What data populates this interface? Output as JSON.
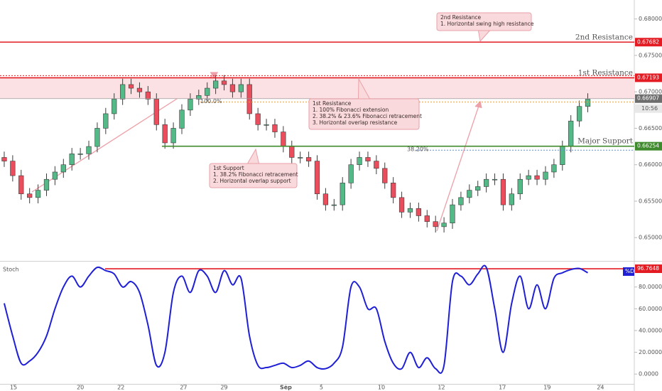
{
  "chart_data": [
    {
      "type": "candlestick",
      "xlim": [
        0,
        75
      ],
      "ylim": [
        0.647,
        0.6826
      ],
      "yticks": [
        {
          "value": 0.68,
          "label": "0.68000"
        },
        {
          "value": 0.675,
          "label": "0.67500"
        },
        {
          "value": 0.67,
          "label": "0.67000"
        },
        {
          "value": 0.665,
          "label": "0.66500"
        },
        {
          "value": 0.66,
          "label": "0.66000"
        },
        {
          "value": 0.655,
          "label": "0.65500"
        },
        {
          "value": 0.65,
          "label": "0.65000"
        }
      ],
      "up_color": "#53b987",
      "down_color": "#eb4d5c",
      "candles": [
        [
          0.661,
          0.6618,
          0.6597,
          0.6605
        ],
        [
          0.6605,
          0.6613,
          0.6577,
          0.6585
        ],
        [
          0.6585,
          0.6593,
          0.6552,
          0.656
        ],
        [
          0.656,
          0.6568,
          0.6547,
          0.6555
        ],
        [
          0.6555,
          0.6573,
          0.6547,
          0.6565
        ],
        [
          0.6565,
          0.6588,
          0.6557,
          0.658
        ],
        [
          0.658,
          0.6598,
          0.6572,
          0.659
        ],
        [
          0.659,
          0.6608,
          0.6582,
          0.66
        ],
        [
          0.66,
          0.6623,
          0.6592,
          0.6615
        ],
        [
          0.6615,
          0.6623,
          0.6607,
          0.6615
        ],
        [
          0.6615,
          0.6633,
          0.6607,
          0.6625
        ],
        [
          0.6625,
          0.6658,
          0.6617,
          0.665
        ],
        [
          0.665,
          0.6678,
          0.6642,
          0.667
        ],
        [
          0.667,
          0.6698,
          0.6662,
          0.669
        ],
        [
          0.669,
          0.6718,
          0.6682,
          0.671
        ],
        [
          0.671,
          0.6718,
          0.6697,
          0.6705
        ],
        [
          0.6705,
          0.6713,
          0.6692,
          0.67
        ],
        [
          0.67,
          0.6708,
          0.6682,
          0.669
        ],
        [
          0.669,
          0.6698,
          0.6647,
          0.6655
        ],
        [
          0.6655,
          0.6663,
          0.6622,
          0.663
        ],
        [
          0.663,
          0.6658,
          0.6622,
          0.665
        ],
        [
          0.665,
          0.6683,
          0.6642,
          0.6675
        ],
        [
          0.6675,
          0.6698,
          0.6667,
          0.669
        ],
        [
          0.669,
          0.6703,
          0.6682,
          0.6695
        ],
        [
          0.6695,
          0.6713,
          0.6687,
          0.6705
        ],
        [
          0.6705,
          0.6723,
          0.6697,
          0.6715
        ],
        [
          0.6715,
          0.6723,
          0.6702,
          0.671
        ],
        [
          0.671,
          0.6718,
          0.6692,
          0.67
        ],
        [
          0.67,
          0.6718,
          0.6692,
          0.671
        ],
        [
          0.671,
          0.6718,
          0.6662,
          0.667
        ],
        [
          0.667,
          0.6678,
          0.6647,
          0.6655
        ],
        [
          0.6655,
          0.6663,
          0.6647,
          0.6655
        ],
        [
          0.6655,
          0.6663,
          0.6637,
          0.6645
        ],
        [
          0.6645,
          0.6653,
          0.6617,
          0.6625
        ],
        [
          0.6625,
          0.6633,
          0.6602,
          0.661
        ],
        [
          0.661,
          0.6618,
          0.6602,
          0.661
        ],
        [
          0.661,
          0.6618,
          0.6597,
          0.6605
        ],
        [
          0.6605,
          0.6613,
          0.6552,
          0.656
        ],
        [
          0.656,
          0.6568,
          0.6537,
          0.6545
        ],
        [
          0.6545,
          0.6553,
          0.6537,
          0.6545
        ],
        [
          0.6545,
          0.6583,
          0.6537,
          0.6575
        ],
        [
          0.6575,
          0.6608,
          0.6567,
          0.66
        ],
        [
          0.66,
          0.6618,
          0.6592,
          0.661
        ],
        [
          0.661,
          0.6618,
          0.6597,
          0.6605
        ],
        [
          0.6605,
          0.6613,
          0.6587,
          0.6595
        ],
        [
          0.6595,
          0.6603,
          0.6567,
          0.6575
        ],
        [
          0.6575,
          0.6583,
          0.6547,
          0.6555
        ],
        [
          0.6555,
          0.6563,
          0.6527,
          0.6535
        ],
        [
          0.6535,
          0.6548,
          0.6527,
          0.654
        ],
        [
          0.654,
          0.6548,
          0.6522,
          0.653
        ],
        [
          0.653,
          0.6538,
          0.6514,
          0.6522
        ],
        [
          0.6522,
          0.653,
          0.6507,
          0.6515
        ],
        [
          0.6515,
          0.6528,
          0.6507,
          0.652
        ],
        [
          0.652,
          0.6553,
          0.6512,
          0.6545
        ],
        [
          0.6545,
          0.6563,
          0.6537,
          0.6555
        ],
        [
          0.6555,
          0.6573,
          0.6547,
          0.6565
        ],
        [
          0.6565,
          0.6578,
          0.6557,
          0.657
        ],
        [
          0.657,
          0.6588,
          0.6562,
          0.658
        ],
        [
          0.658,
          0.6588,
          0.6572,
          0.658
        ],
        [
          0.658,
          0.6588,
          0.6537,
          0.6545
        ],
        [
          0.6545,
          0.6568,
          0.6537,
          0.656
        ],
        [
          0.656,
          0.6588,
          0.6552,
          0.658
        ],
        [
          0.658,
          0.6593,
          0.6572,
          0.6585
        ],
        [
          0.6585,
          0.6593,
          0.6572,
          0.658
        ],
        [
          0.658,
          0.6598,
          0.6572,
          0.659
        ],
        [
          0.659,
          0.6608,
          0.6582,
          0.66
        ],
        [
          0.66,
          0.6633,
          0.6592,
          0.6625
        ],
        [
          0.6625,
          0.6668,
          0.6617,
          0.666
        ],
        [
          0.666,
          0.6688,
          0.6652,
          0.668
        ],
        [
          0.668,
          0.6698,
          0.6672,
          0.669
        ]
      ],
      "levels": [
        {
          "name": "2nd Resistance",
          "value": 0.67682,
          "color": "#e31b23"
        },
        {
          "name": "1st Resistance",
          "value": 0.67193,
          "color": "#e31b23"
        },
        {
          "name": "Major Support",
          "value": 0.66254,
          "color": "#3f8a2c"
        }
      ],
      "current": {
        "value": 0.66907,
        "time": "10:56",
        "color": "#9e9e9e"
      },
      "fib": [
        {
          "label": "100.0%",
          "value": 0.6686,
          "color": "#f0a030"
        },
        {
          "label": "38.20%",
          "value": 0.662,
          "color": "#5b8fe0"
        }
      ],
      "annotations": [
        {
          "lines": [
            "2nd Resistance",
            "1. Horizontal swing high resistance"
          ]
        },
        {
          "lines": [
            "1st Resistance",
            "1. 100% Fibonacci extension",
            "2. 38.2% & 23.6% Fibonacci retracement",
            "3. Horizontal overlap resistance"
          ]
        },
        {
          "lines": [
            "1st Support",
            "1. 38.2% Fibonacci retracement",
            "2. Horizontal overlap support"
          ]
        }
      ]
    },
    {
      "type": "line",
      "title": "Stoch",
      "xlim": [
        0,
        75
      ],
      "ylim": [
        -9,
        102
      ],
      "yticks": [
        {
          "value": 80,
          "label": "80.0000"
        },
        {
          "value": 60,
          "label": "60.0000"
        },
        {
          "value": 40,
          "label": "40.0000"
        },
        {
          "value": 20,
          "label": "20.0000"
        },
        {
          "value": 0,
          "label": "0.0000"
        }
      ],
      "xticks": [
        {
          "value": 1.6,
          "label": "15"
        },
        {
          "value": 9.5,
          "label": "20"
        },
        {
          "value": 14.3,
          "label": "22"
        },
        {
          "value": 21.7,
          "label": "27"
        },
        {
          "value": 26.5,
          "label": "29"
        },
        {
          "value": 33.8,
          "label": "Sep"
        },
        {
          "value": 38.0,
          "label": "5"
        },
        {
          "value": 45.1,
          "label": "10"
        },
        {
          "value": 52.2,
          "label": "12"
        },
        {
          "value": 59.4,
          "label": "17"
        },
        {
          "value": 64.7,
          "label": "19"
        },
        {
          "value": 71.0,
          "label": "24"
        }
      ],
      "series": [
        {
          "name": "%D",
          "color": "#1f1fd6",
          "values": [
            65,
            35,
            10,
            12,
            20,
            35,
            60,
            80,
            90,
            80,
            90,
            98,
            95,
            92,
            80,
            85,
            75,
            45,
            8,
            20,
            75,
            90,
            75,
            95,
            90,
            75,
            95,
            82,
            88,
            35,
            8,
            6,
            8,
            10,
            6,
            8,
            12,
            6,
            5,
            10,
            25,
            80,
            80,
            60,
            60,
            30,
            10,
            5,
            20,
            6,
            15,
            5,
            8,
            85,
            90,
            82,
            92,
            98,
            60,
            20,
            65,
            90,
            60,
            82,
            60,
            88,
            93,
            96,
            97,
            93
          ]
        }
      ],
      "level": {
        "value": 96.7648,
        "color": "#e31b23"
      }
    }
  ]
}
